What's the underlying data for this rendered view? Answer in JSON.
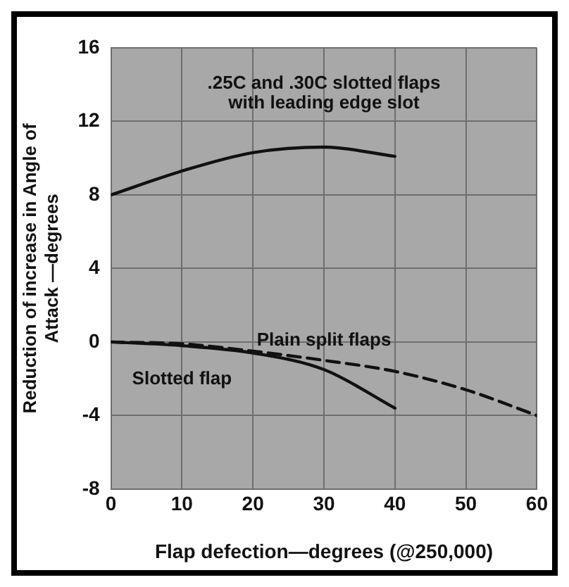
{
  "chart_data": {
    "type": "line",
    "xlabel": "Flap defection—degrees (@250,000)",
    "ylabel": "Reduction of increase in Angle of Attack —degrees",
    "x": [
      0,
      10,
      20,
      30,
      40
    ],
    "xlim": [
      0,
      60
    ],
    "xticks": [
      0,
      10,
      20,
      30,
      40,
      50,
      60
    ],
    "ylim": [
      -8,
      16
    ],
    "yticks": [
      -8,
      -4,
      0,
      4,
      8,
      12,
      16
    ],
    "grid": true,
    "legend": false,
    "marker": "none",
    "series": [
      {
        "name": ".25C and .30C slotted flaps with leading edge slot",
        "color": "#111111",
        "line_style": "solid",
        "values": [
          8,
          9.3,
          10.3,
          10.6,
          10.1
        ]
      },
      {
        "name": "Plain split flaps",
        "color": "#111111",
        "line_style": "dashed",
        "x": [
          0,
          10,
          20,
          30,
          40,
          50,
          60
        ],
        "values": [
          0,
          -0.1,
          -0.5,
          -1,
          -1.6,
          -2.6,
          -4
        ]
      },
      {
        "name": "Slotted flap",
        "color": "#111111",
        "line_style": "solid",
        "values": [
          0,
          -0.2,
          -0.6,
          -1.5,
          -3.6
        ]
      }
    ]
  }
}
